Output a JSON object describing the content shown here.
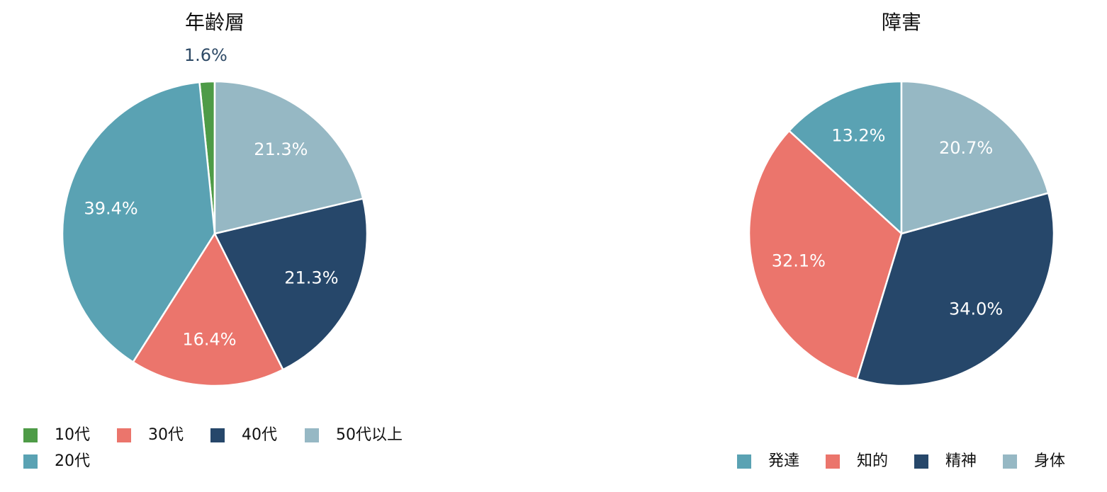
{
  "chart_data": [
    {
      "type": "pie",
      "title": "年齢層",
      "categories": [
        "10代",
        "20代",
        "30代",
        "40代",
        "50代以上"
      ],
      "values": [
        1.6,
        39.4,
        16.4,
        21.3,
        21.3
      ],
      "value_labels": [
        "1.6%",
        "39.4%",
        "16.4%",
        "21.3%",
        "21.3%"
      ],
      "colors": [
        "#4e9b47",
        "#5aa2b3",
        "#eb756c",
        "#26476a",
        "#96b8c4"
      ]
    },
    {
      "type": "pie",
      "title": "障害",
      "categories": [
        "発達",
        "知的",
        "精神",
        "身体"
      ],
      "values": [
        13.2,
        32.1,
        34.0,
        20.7
      ],
      "value_labels": [
        "13.2%",
        "32.1%",
        "34.0%",
        "20.7%"
      ],
      "colors": [
        "#5aa2b3",
        "#eb756c",
        "#26476a",
        "#96b8c4"
      ]
    }
  ]
}
